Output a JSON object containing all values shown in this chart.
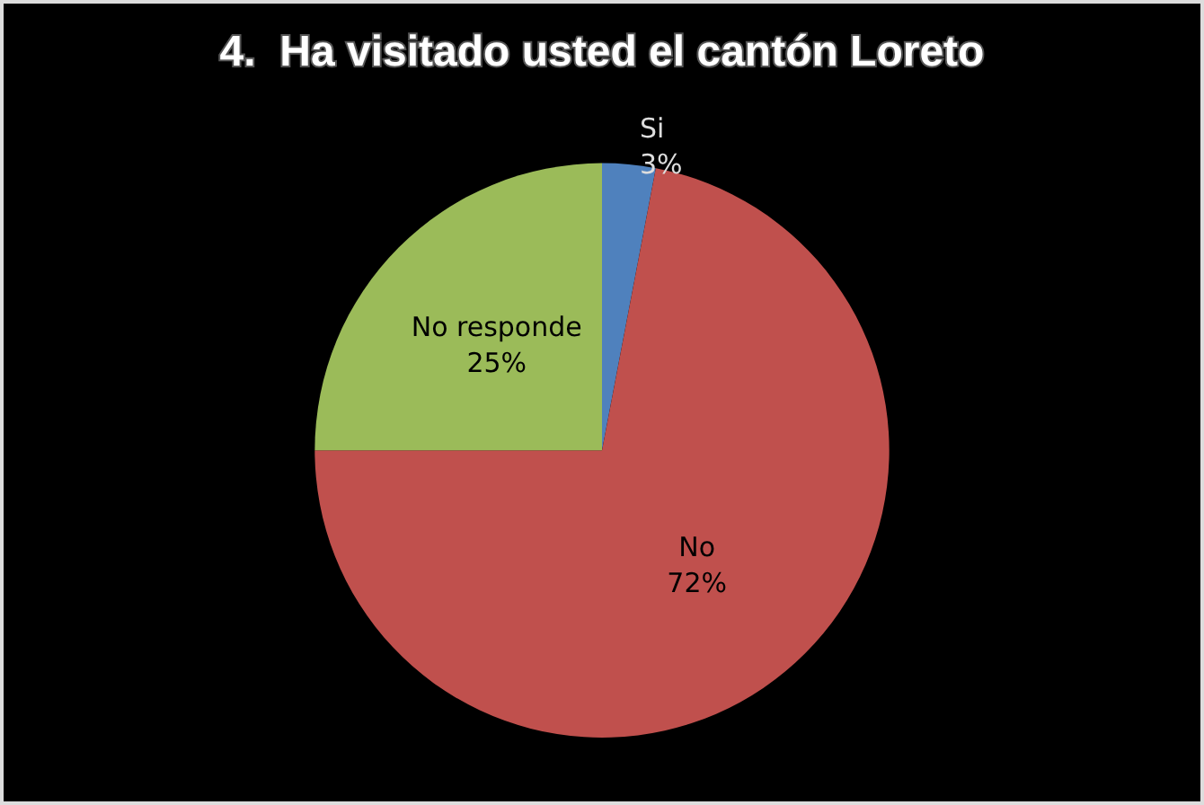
{
  "chart_data": {
    "type": "pie",
    "title": "4.  Ha visitado usted el cantón Loreto",
    "categories": [
      "Si",
      "No",
      "No responde"
    ],
    "values": [
      3,
      72,
      25
    ],
    "colors": [
      "#4f81bd",
      "#c0504d",
      "#9bbb59"
    ],
    "value_labels": [
      "3%",
      "72%",
      "25%"
    ],
    "legend": false
  }
}
